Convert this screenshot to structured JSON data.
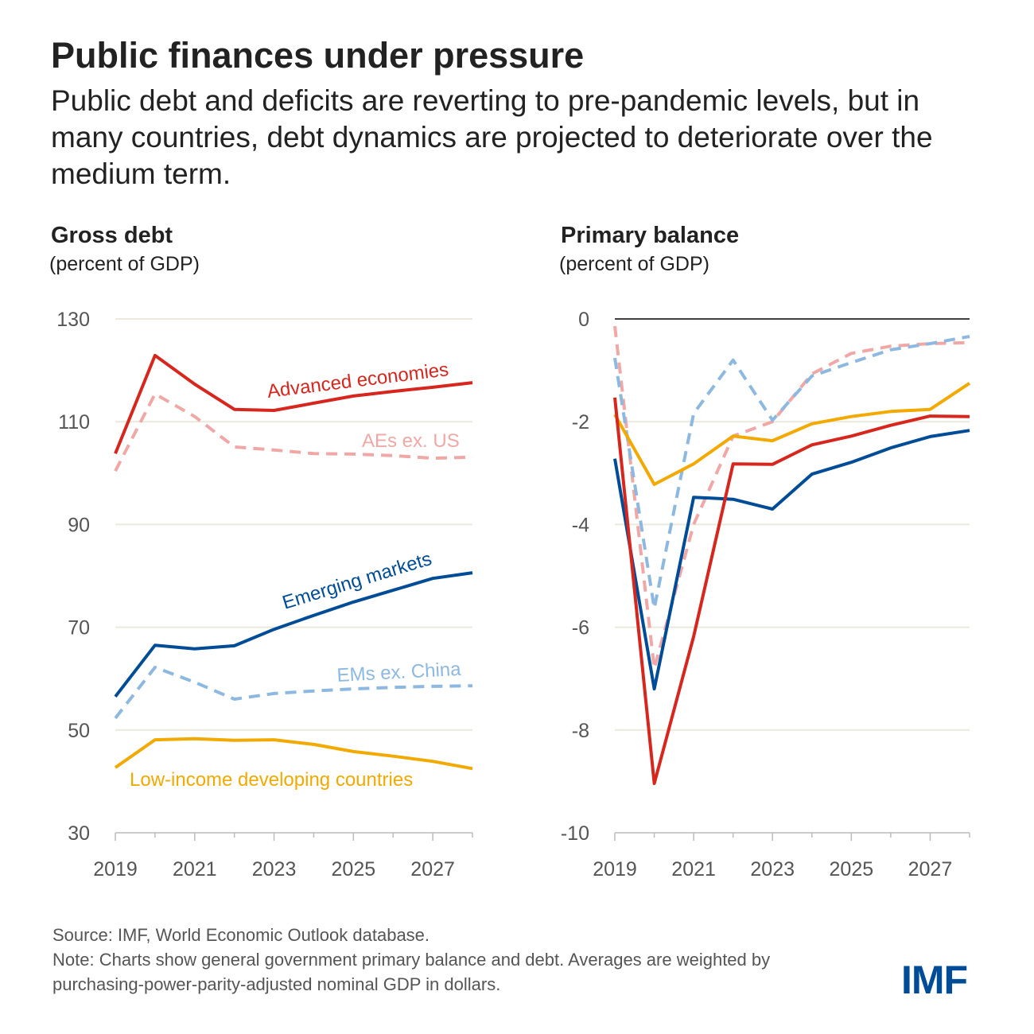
{
  "title": "Public finances under pressure",
  "subtitle": "Public debt and deficits are reverting to pre-pandemic levels, but in many countries, debt dynamics are projected to deteriorate over the medium term.",
  "colors": {
    "advanced": "#d7261e",
    "aes_ex_us": "#f0a8a6",
    "emerging": "#004c97",
    "ems_ex_china": "#8db8e0",
    "lidc": "#f2a900",
    "grid": "#ebe9dc"
  },
  "chart_data": [
    {
      "type": "line",
      "title": "Gross debt",
      "ylabel": "(percent of GDP)",
      "x": [
        2019,
        2020,
        2021,
        2022,
        2023,
        2024,
        2025,
        2026,
        2027,
        2028
      ],
      "xticks": [
        "2019",
        "2021",
        "2023",
        "2025",
        "2027"
      ],
      "yticks": [
        "130",
        "110",
        "90",
        "70",
        "50",
        "30"
      ],
      "ylim": [
        30,
        130
      ],
      "grid": true,
      "series": [
        {
          "name": "Advanced economies",
          "key": "advanced",
          "dashed": false,
          "values": [
            103.8,
            122.9,
            117.3,
            112.4,
            112.2,
            113.6,
            115.0,
            115.9,
            116.7,
            117.6
          ]
        },
        {
          "name": "AEs ex. US",
          "key": "aes_ex_us",
          "dashed": true,
          "values": [
            100.4,
            115.4,
            111.0,
            105.1,
            104.5,
            103.8,
            103.7,
            103.4,
            102.9,
            103.1
          ]
        },
        {
          "name": "Emerging markets",
          "key": "emerging",
          "dashed": false,
          "values": [
            56.5,
            66.5,
            65.8,
            66.4,
            69.6,
            72.3,
            74.9,
            77.2,
            79.5,
            80.6
          ]
        },
        {
          "name": "EMs ex. China",
          "key": "ems_ex_china",
          "dashed": true,
          "values": [
            52.3,
            62.2,
            59.3,
            56.0,
            57.1,
            57.6,
            58.0,
            58.3,
            58.5,
            58.6
          ]
        },
        {
          "name": "Low-income developing countries",
          "key": "lidc",
          "dashed": false,
          "values": [
            42.7,
            48.1,
            48.3,
            48.0,
            48.1,
            47.2,
            45.8,
            44.9,
            43.9,
            42.5
          ]
        }
      ]
    },
    {
      "type": "line",
      "title": "Primary balance",
      "ylabel": "(percent of GDP)",
      "x": [
        2019,
        2020,
        2021,
        2022,
        2023,
        2024,
        2025,
        2026,
        2027,
        2028
      ],
      "xticks": [
        "2019",
        "2021",
        "2023",
        "2025",
        "2027"
      ],
      "yticks": [
        "0",
        "-2",
        "-4",
        "-6",
        "-8",
        "-10"
      ],
      "ylim": [
        -10,
        0
      ],
      "grid": true,
      "series": [
        {
          "key": "aes_ex_us",
          "dashed": true,
          "values": [
            -0.14,
            -6.8,
            -4.0,
            -2.28,
            -2.0,
            -1.07,
            -0.67,
            -0.53,
            -0.48,
            -0.46
          ]
        },
        {
          "key": "ems_ex_china",
          "dashed": true,
          "values": [
            -0.76,
            -5.63,
            -1.84,
            -0.8,
            -1.97,
            -1.11,
            -0.85,
            -0.6,
            -0.48,
            -0.34
          ]
        },
        {
          "key": "lidc",
          "dashed": false,
          "values": [
            -1.86,
            -3.22,
            -2.82,
            -2.28,
            -2.37,
            -2.04,
            -1.9,
            -1.8,
            -1.76,
            -1.25
          ]
        },
        {
          "key": "emerging",
          "dashed": false,
          "values": [
            -2.72,
            -7.2,
            -3.47,
            -3.51,
            -3.7,
            -3.02,
            -2.79,
            -2.51,
            -2.29,
            -2.17
          ]
        },
        {
          "key": "advanced",
          "dashed": false,
          "values": [
            -1.53,
            -9.04,
            -6.18,
            -2.82,
            -2.83,
            -2.45,
            -2.28,
            -2.07,
            -1.89,
            -1.9
          ]
        }
      ]
    }
  ],
  "footer": {
    "source": "Source: IMF, World Economic Outlook database.",
    "note": "Note: Charts show general government primary balance and debt. Averages are weighted by purchasing-power-parity-adjusted nominal GDP in dollars."
  },
  "logo": "IMF"
}
